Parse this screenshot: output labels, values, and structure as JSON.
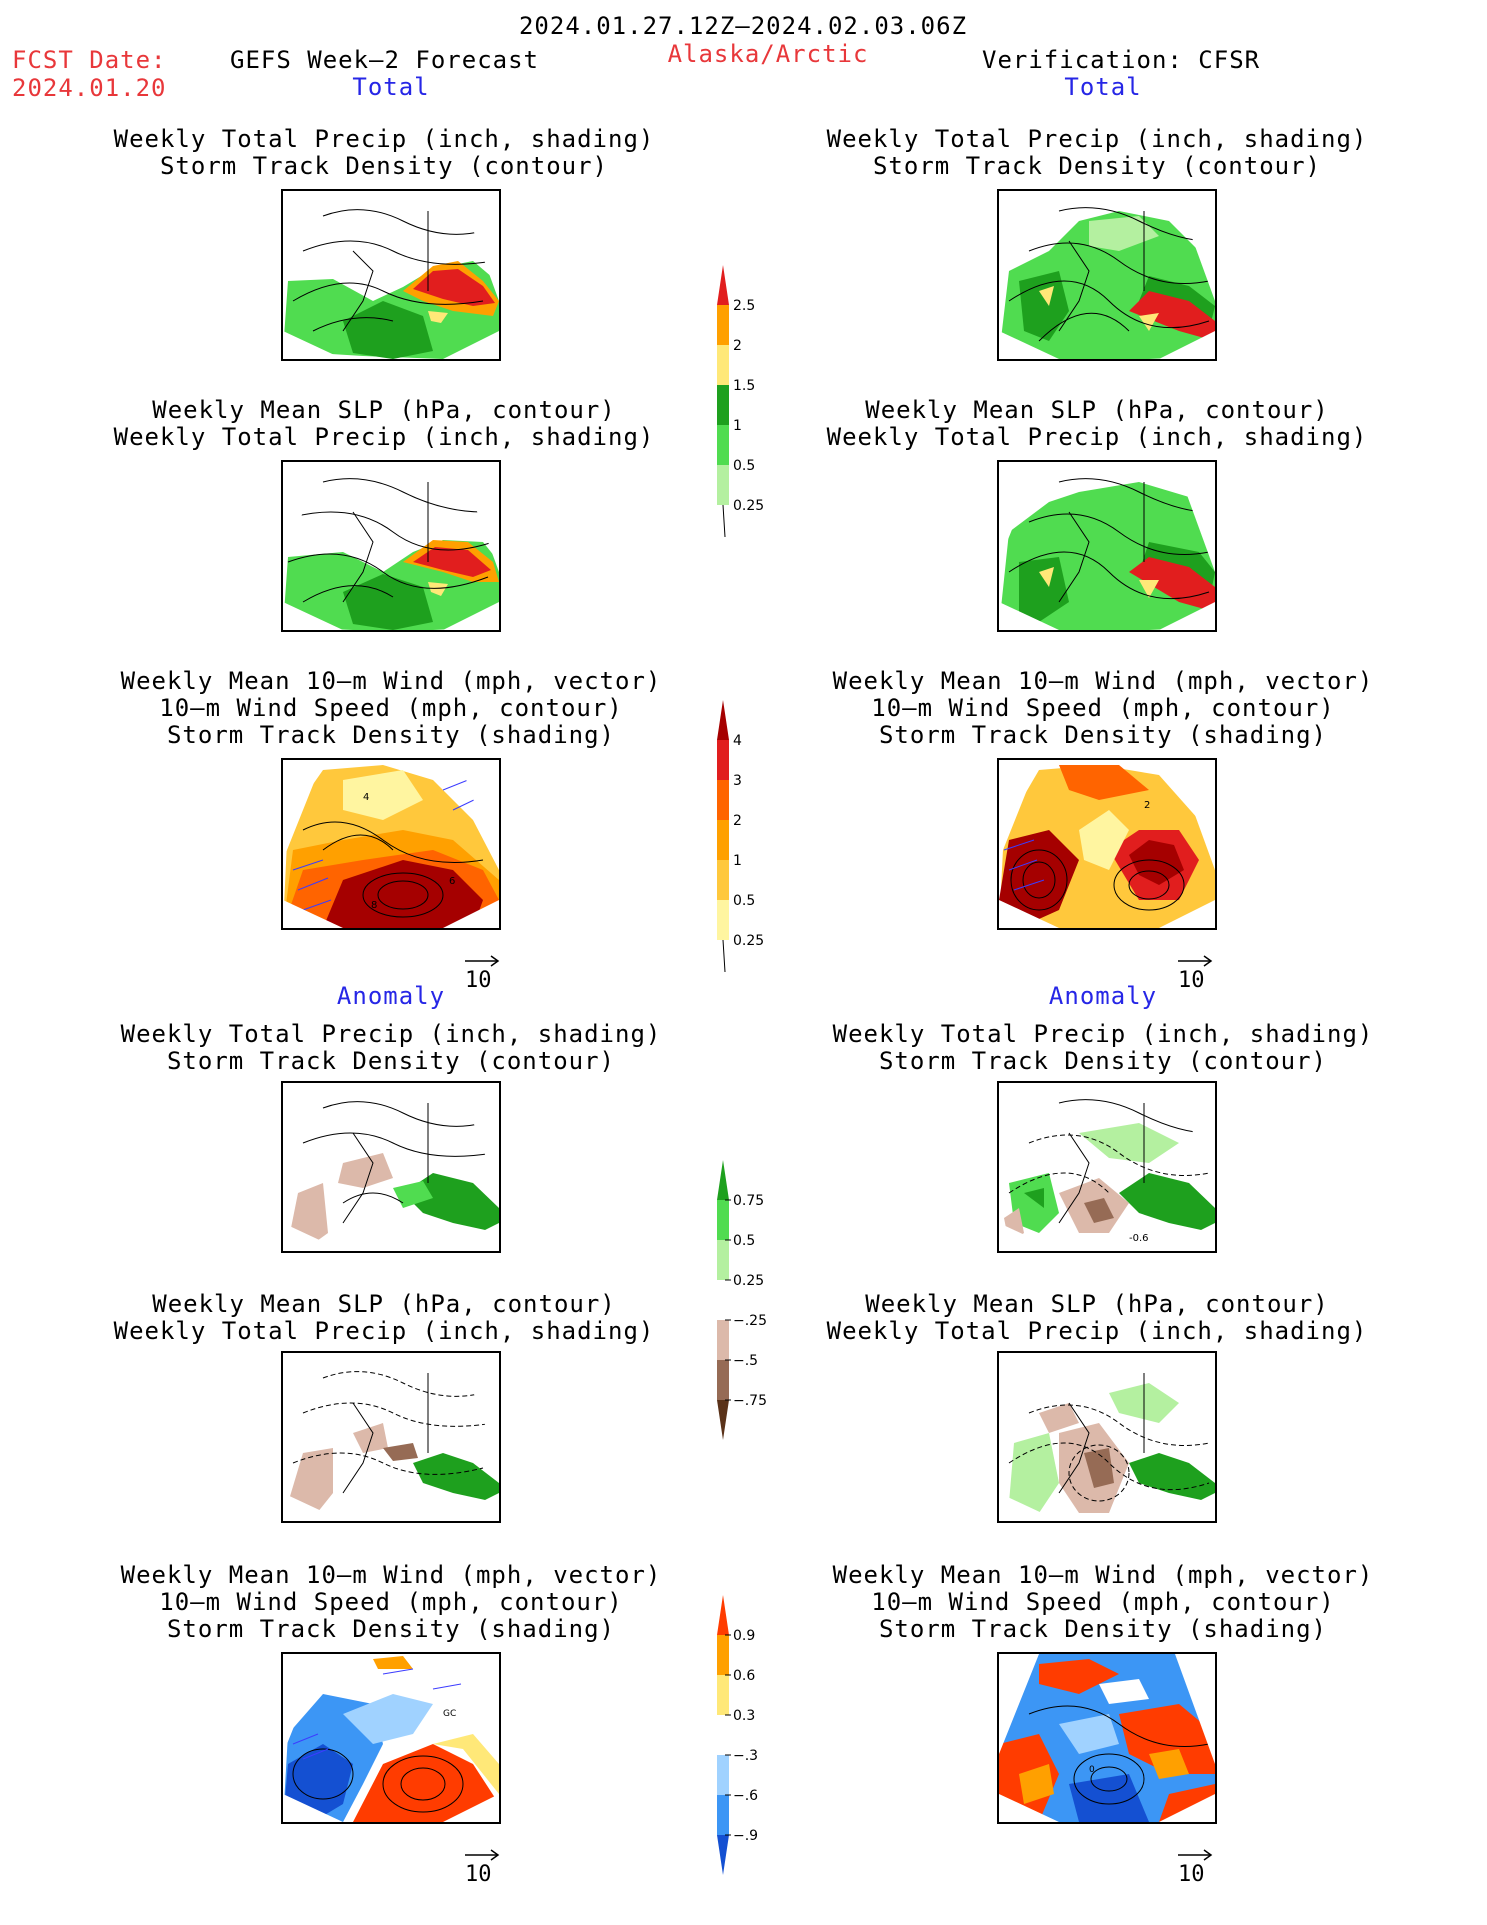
{
  "header": {
    "period": "2024.01.27.12Z–2024.02.03.06Z",
    "fcst_label": "FCST Date:",
    "fcst_date": "2024.01.20",
    "model": "GEFS Week–2 Forecast",
    "region": "Alaska/Arctic",
    "verification": "Verification: CFSR"
  },
  "sections": {
    "total": "Total",
    "anomaly": "Anomaly"
  },
  "panel_titles": {
    "precip_track": [
      "Weekly Total Precip (inch, shading)",
      "Storm Track Density (contour)"
    ],
    "slp_precip": [
      "Weekly Mean SLP (hPa, contour)",
      "Weekly Total Precip (inch, shading)"
    ],
    "wind": [
      "Weekly Mean 10–m Wind (mph, vector)",
      "10–m Wind Speed (mph, contour)",
      "Storm Track Density (shading)"
    ]
  },
  "vector_ref": "10",
  "map_labels": {
    "fcst_total_wind": [
      "4",
      "6",
      "8"
    ],
    "obs_total_wind": [
      "2"
    ],
    "obs_anom_precip": [
      "-0.6"
    ],
    "fcst_anom_wind": [
      "GC"
    ],
    "obs_anom_wind": [
      "0"
    ]
  },
  "colors": {
    "title_red": "#e8373a",
    "section_blue": "#2626e6",
    "precip": [
      "#b4f0a0",
      "#50dc50",
      "#1ea01e",
      "#ffe878",
      "#ffa000",
      "#e11e1e"
    ],
    "track": [
      "#fff5a0",
      "#ffc83c",
      "#ffa000",
      "#ff6400",
      "#e11e1e",
      "#a50000"
    ],
    "precip_anom": [
      "#5a3219",
      "#966b55",
      "#dcb9aa",
      "#ffffff",
      "#b4f0a0",
      "#50dc50",
      "#1ea01e"
    ],
    "track_anom": [
      "#1450d2",
      "#3c96f5",
      "#a0d2ff",
      "#ffffff",
      "#ffe878",
      "#ffa000",
      "#ff3c00"
    ]
  },
  "chart_data": [
    {
      "type": "heatmap",
      "title": "Weekly Total Precip (inch, shading)",
      "colorbar_levels": [
        0.25,
        0.5,
        1,
        1.5,
        2,
        2.5
      ]
    },
    {
      "type": "heatmap",
      "title": "Storm Track Density (shading)",
      "colorbar_levels": [
        0.25,
        0.5,
        1,
        2,
        3,
        4
      ]
    },
    {
      "type": "heatmap",
      "title": "Weekly Total Precip (inch, shading)",
      "colorbar_levels": [
        -0.75,
        -0.5,
        -0.25,
        0.25,
        0.5,
        0.75
      ]
    },
    {
      "type": "heatmap",
      "title": "Storm Track Density (shading)",
      "colorbar_levels": [
        -0.9,
        -0.6,
        -0.3,
        0.3,
        0.6,
        0.9
      ]
    }
  ]
}
